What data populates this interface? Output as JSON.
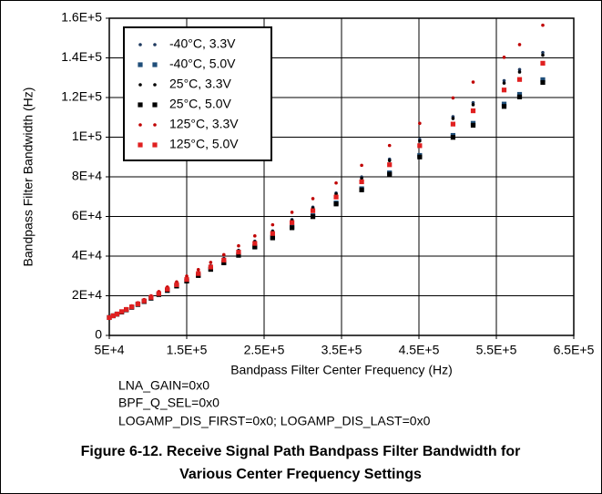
{
  "chart_data": {
    "type": "scatter",
    "xlabel": "Bandpass Filter Center Frequency (Hz)",
    "ylabel": "Bandpass Filter Bandwidth (Hz)",
    "notes": [
      "LNA_GAIN=0x0",
      "BPF_Q_SEL=0x0",
      "LOGAMP_DIS_FIRST=0x0; LOGAMP_DIS_LAST=0x0"
    ],
    "caption": [
      "Figure 6-12. Receive Signal Path Bandpass Filter Bandwidth for",
      "Various Center Frequency Settings"
    ],
    "xlim": [
      50000,
      650000
    ],
    "ylim": [
      0,
      160000
    ],
    "xticks": [
      {
        "value": 50000,
        "label": "5E+4"
      },
      {
        "value": 150000,
        "label": "1.5E+5"
      },
      {
        "value": 250000,
        "label": "2.5E+5"
      },
      {
        "value": 350000,
        "label": "3.5E+5"
      },
      {
        "value": 450000,
        "label": "4.5E+5"
      },
      {
        "value": 550000,
        "label": "5.5E+5"
      },
      {
        "value": 650000,
        "label": "6.5E+5"
      }
    ],
    "yticks": [
      0,
      {
        "value": 20000,
        "label": "2E+4"
      },
      {
        "value": 40000,
        "label": "4E+4"
      },
      {
        "value": 60000,
        "label": "6E+4"
      },
      {
        "value": 80000,
        "label": "8E+4"
      },
      {
        "value": 100000,
        "label": "1E+5"
      },
      {
        "value": 120000,
        "label": "1.2E+5"
      },
      {
        "value": 140000,
        "label": "1.4E+5"
      },
      {
        "value": 160000,
        "label": "1.6E+5"
      }
    ],
    "grid": true,
    "legend": "upper left",
    "x": [
      50000,
      55000,
      60000,
      66000,
      72000,
      79000,
      87000,
      95000,
      104000,
      114000,
      125000,
      137000,
      150000,
      165000,
      181000,
      198000,
      217000,
      238000,
      261000,
      286000,
      313000,
      343000,
      376000,
      412000,
      451000,
      494000,
      520000,
      560000,
      580000,
      610000
    ],
    "series": [
      {
        "name": "-40°C, 3.3V",
        "color": "#1f3a5f",
        "marker": "circle",
        "values": [
          9000,
          10000,
          10900,
          12000,
          13200,
          14500,
          16100,
          17600,
          19400,
          21400,
          23600,
          26000,
          28700,
          31800,
          35100,
          38800,
          42900,
          47500,
          52700,
          58400,
          64700,
          71800,
          79900,
          88900,
          98900,
          110300,
          117400,
          128500,
          134100,
          142700
        ]
      },
      {
        "name": "-40°C, 5.0V",
        "color": "#1f4e79",
        "marker": "square",
        "values": [
          9000,
          9900,
          10800,
          11800,
          12900,
          14200,
          15700,
          17100,
          18800,
          20700,
          22700,
          25000,
          27500,
          30400,
          33500,
          36800,
          40600,
          44800,
          49500,
          54700,
          60400,
          66800,
          74000,
          82000,
          90800,
          100900,
          107000,
          116700,
          121600,
          129000
        ]
      },
      {
        "name": "25°C, 3.3V",
        "color": "#000000",
        "marker": "circle",
        "values": [
          9000,
          10000,
          10900,
          12000,
          13200,
          14500,
          16000,
          17600,
          19300,
          21300,
          23500,
          25900,
          28600,
          31600,
          35000,
          38600,
          42700,
          47200,
          52400,
          58000,
          64200,
          71300,
          79300,
          88200,
          98100,
          109400,
          116400,
          127300,
          132900,
          141400
        ]
      },
      {
        "name": "25°C, 5.0V",
        "color": "#000000",
        "marker": "square",
        "values": [
          9000,
          9900,
          10700,
          11800,
          12900,
          14200,
          15600,
          17100,
          18800,
          20600,
          22700,
          24900,
          27400,
          30200,
          33300,
          36600,
          40400,
          44600,
          49200,
          54300,
          59900,
          66300,
          73400,
          81300,
          90000,
          99900,
          106000,
          115500,
          120300,
          127600
        ]
      },
      {
        "name": "125°C, 3.3V",
        "color": "#c00000",
        "marker": "circle",
        "values": [
          9000,
          10100,
          11100,
          12300,
          13500,
          14900,
          16500,
          18100,
          20000,
          22100,
          24400,
          27000,
          29900,
          33200,
          36800,
          40700,
          45200,
          50200,
          55800,
          62100,
          69000,
          76900,
          85800,
          95800,
          107000,
          119800,
          127800,
          140300,
          146700,
          156500
        ]
      },
      {
        "name": "125°C, 5.0V",
        "color": "#e02020",
        "marker": "square",
        "values": [
          9000,
          9900,
          10800,
          12000,
          13100,
          14400,
          15900,
          17400,
          19200,
          21100,
          23300,
          25600,
          28200,
          31200,
          34500,
          38000,
          42000,
          46400,
          51400,
          56900,
          62900,
          69800,
          77500,
          86100,
          95700,
          106600,
          113300,
          123800,
          129100,
          137300
        ]
      }
    ]
  }
}
